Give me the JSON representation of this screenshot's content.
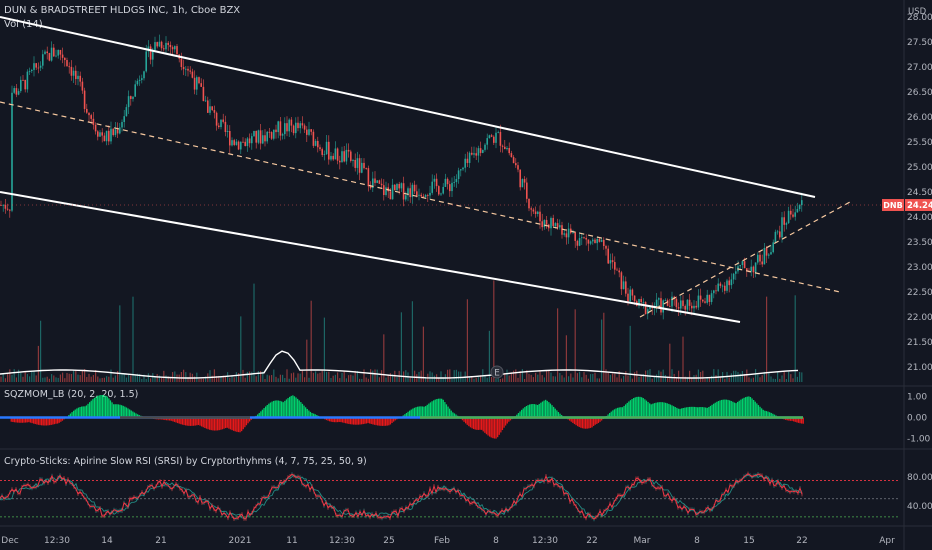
{
  "header": {
    "symbol_title": "DUN & BRADSTREET HLDGS INC, 1h, Cboe BZX",
    "volume_label": "Vol (14)",
    "currency": "USD"
  },
  "price_badge": {
    "symbol": "DNB",
    "value": "24.24"
  },
  "event_marker": "E",
  "colors": {
    "background": "#131722",
    "up": "#26a69a",
    "down": "#ef5350",
    "sqz_up": "#00e676",
    "sqz_down": "#ff1a1a",
    "rsi_line": "#f23645",
    "rsi_signal": "#26a69a"
  },
  "chart_data": [
    {
      "type": "candlestick",
      "pane": "price",
      "ylim": [
        20.7,
        28.1
      ],
      "y_ticks": [
        "28.00",
        "27.50",
        "27.00",
        "26.50",
        "26.00",
        "25.50",
        "25.00",
        "24.50",
        "24.00",
        "23.50",
        "23.00",
        "22.50",
        "22.00",
        "21.50",
        "21.00"
      ],
      "x_ticks": [
        "Dec",
        "12:30",
        "14",
        "21",
        "2021",
        "11",
        "12:30",
        "25",
        "Feb",
        "8",
        "12:30",
        "22",
        "Mar",
        "8",
        "15",
        "22",
        "Apr"
      ],
      "close_path": [
        {
          "x": "Dec",
          "y": 26.5
        },
        {
          "x": "12:30",
          "y": 27.3
        },
        {
          "x": "14",
          "y": 25.6
        },
        {
          "x": "21",
          "y": 27.5
        },
        {
          "x": "2021",
          "y": 25.5
        },
        {
          "x": "11",
          "y": 25.8
        },
        {
          "x": "12:30",
          "y": 25.2
        },
        {
          "x": "25",
          "y": 24.5
        },
        {
          "x": "Feb",
          "y": 24.6
        },
        {
          "x": "8",
          "y": 25.6
        },
        {
          "x": "12:30",
          "y": 23.9
        },
        {
          "x": "22",
          "y": 23.5
        },
        {
          "x": "Mar",
          "y": 22.2
        },
        {
          "x": "8",
          "y": 22.3
        },
        {
          "x": "15",
          "y": 23.0
        },
        {
          "x": "22",
          "y": 24.24
        }
      ],
      "trendlines": [
        {
          "name": "channel-upper",
          "style": "solid",
          "from": 28.0,
          "to": 24.4
        },
        {
          "name": "channel-lower",
          "style": "solid",
          "from": 24.5,
          "to": 21.9
        },
        {
          "name": "channel-mid",
          "style": "dashed",
          "from": 26.3,
          "to": 22.5
        },
        {
          "name": "rising-support",
          "style": "dashed",
          "from": 22.0,
          "to": 24.3
        }
      ],
      "last_price": 24.24
    },
    {
      "type": "histogram",
      "pane": "SQZMOM_LB",
      "title": "SQZMOM_LB (20, 2, 20, 1.5)",
      "y_ticks": [
        "1.00",
        "0.00",
        "-1.00"
      ],
      "ylim": [
        -1.3,
        1.3
      ],
      "momentum_wave": [
        {
          "x": "Dec",
          "y": -0.2
        },
        {
          "x": "12:30",
          "y": -0.4
        },
        {
          "x": "14",
          "y": 1.1
        },
        {
          "x": "21",
          "y": -0.1
        },
        {
          "x": "2021",
          "y": -0.7
        },
        {
          "x": "11",
          "y": 1.1
        },
        {
          "x": "12:30",
          "y": -0.3
        },
        {
          "x": "25",
          "y": -0.4
        },
        {
          "x": "Feb",
          "y": 0.9
        },
        {
          "x": "8",
          "y": -1.0
        },
        {
          "x": "12:30",
          "y": 0.9
        },
        {
          "x": "22",
          "y": -0.6
        },
        {
          "x": "Mar",
          "y": 1.0
        },
        {
          "x": "8",
          "y": 0.5
        },
        {
          "x": "15",
          "y": 1.0
        },
        {
          "x": "22",
          "y": -0.3
        }
      ]
    },
    {
      "type": "line",
      "pane": "RSI",
      "title": "Crypto-Sticks: Apirine Slow RSI (SRSI) by Cryptorthyhms (4, 7, 75, 25, 50, 9)",
      "y_ticks": [
        "80.00",
        "40.00"
      ],
      "ylim": [
        18,
        95
      ],
      "levels": [
        75,
        50,
        25
      ],
      "series": [
        {
          "values": [
            {
              "x": "Dec",
              "y": 60
            },
            {
              "x": "12:30",
              "y": 78
            },
            {
              "x": "14",
              "y": 30
            },
            {
              "x": "21",
              "y": 70
            },
            {
              "x": "2021",
              "y": 25
            },
            {
              "x": "11",
              "y": 80
            },
            {
              "x": "12:30",
              "y": 30
            },
            {
              "x": "25",
              "y": 28
            },
            {
              "x": "Feb",
              "y": 65
            },
            {
              "x": "8",
              "y": 30
            },
            {
              "x": "12:30",
              "y": 78
            },
            {
              "x": "22",
              "y": 25
            },
            {
              "x": "Mar",
              "y": 75
            },
            {
              "x": "8",
              "y": 30
            },
            {
              "x": "15",
              "y": 82
            },
            {
              "x": "22",
              "y": 60
            }
          ]
        }
      ]
    }
  ]
}
